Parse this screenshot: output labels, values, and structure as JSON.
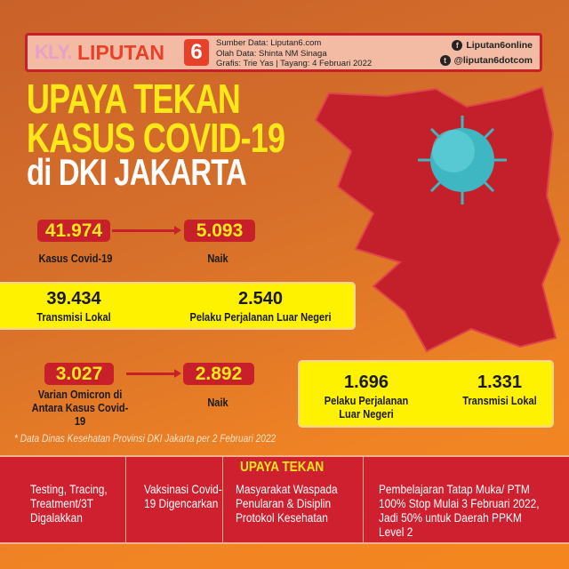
{
  "header": {
    "logo_kly": "KLY.",
    "logo_liputan": "LIPUTAN",
    "logo_six": "6",
    "source_lines": [
      "Sumber Data: Liputan6.com",
      "Olah Data: Shinta NM Sinaga",
      "Grafis: Trie Yas | Tayang: 4 Februari 2022"
    ],
    "facebook": "Liputan6online",
    "twitter": "@liputan6dotcom"
  },
  "title": {
    "line1": "UPAYA TEKAN",
    "line2": "KASUS COVID-19",
    "line3": "di DKI JAKARTA"
  },
  "colors": {
    "accent_red": "#c8202a",
    "yellow": "#fff200",
    "title_yellow": "#ffe81a",
    "background_orange": "#f08424"
  },
  "stats": {
    "kasus": {
      "value": "41.974",
      "label": "Kasus Covid-19"
    },
    "kasus_naik": {
      "value": "5.093",
      "label": "Naik"
    },
    "transmisi_lokal": {
      "value": "39.434",
      "label": "Transmisi Lokal"
    },
    "luar_negeri": {
      "value": "2.540",
      "label": "Pelaku Perjalanan Luar Negeri"
    },
    "omicron": {
      "value": "3.027",
      "label": "Varian Omicron di Antara Kasus Covid-19"
    },
    "omicron_naik": {
      "value": "2.892",
      "label": "Naik"
    },
    "omicron_luar_negeri": {
      "value": "1.696",
      "label": "Pelaku Perjalanan Luar Negeri"
    },
    "omicron_lokal": {
      "value": "1.331",
      "label": "Transmisi Lokal"
    }
  },
  "footnote": "* Data Dinas Kesehatan Provinsi DKI Jakarta per 2 Februari 2022",
  "upaya": {
    "heading": "UPAYA TEKAN",
    "items": [
      "Testing, Tracing, Treatment/3T Digalakkan",
      "Vaksinasi Covid-19 Digencarkan",
      "Masyarakat Waspada Penularan & Disiplin Protokol Kesehatan",
      "Pembelajaran Tatap Muka/ PTM 100% Stop Mulai 3 Februari 2022, Jadi 50% untuk Daerah PPKM Level 2"
    ]
  }
}
